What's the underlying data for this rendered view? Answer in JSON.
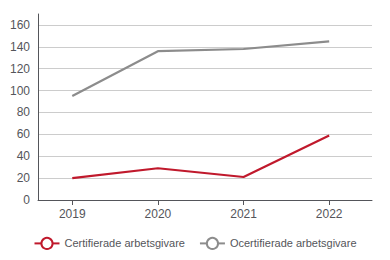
{
  "chart_data": {
    "type": "line",
    "x": [
      2019,
      2020,
      2021,
      2022
    ],
    "series": [
      {
        "name": "Certifierade arbetsgivare",
        "color": "#c0192c",
        "values": [
          20,
          29,
          21,
          59
        ]
      },
      {
        "name": "Ocertifierade arbetsgivare",
        "color": "#8c8c8c",
        "values": [
          95,
          136,
          138,
          145
        ]
      }
    ],
    "xlim": [
      2018.6,
      2022.5
    ],
    "xticks": [
      2019,
      2020,
      2021,
      2022
    ],
    "ylim": [
      0,
      170
    ],
    "yticks": [
      0,
      20,
      40,
      60,
      80,
      100,
      120,
      140,
      160
    ],
    "grid": true,
    "legend": "bottom"
  }
}
